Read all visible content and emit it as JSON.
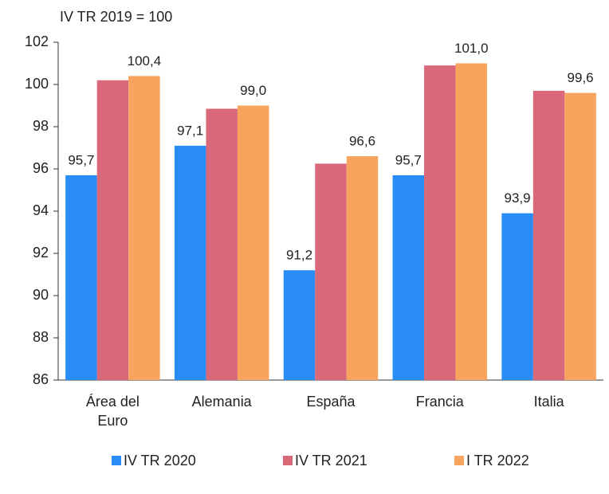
{
  "chart_data": {
    "type": "bar",
    "title": "IV TR 2019 = 100",
    "categories": [
      "Área del Euro",
      "Alemania",
      "España",
      "Francia",
      "Italia"
    ],
    "series": [
      {
        "name": "IV TR 2020",
        "color": "#2a8cf5",
        "values": [
          95.7,
          97.1,
          91.2,
          95.7,
          93.9
        ],
        "value_labels": [
          "95,7",
          "97,1",
          "91,2",
          "95,7",
          "93,9"
        ]
      },
      {
        "name": "IV TR 2021",
        "color": "#d9687a",
        "values": [
          100.2,
          98.85,
          96.25,
          100.9,
          99.7
        ]
      },
      {
        "name": "I TR 2022",
        "color": "#f9a45e",
        "values": [
          100.4,
          99.0,
          96.6,
          101.0,
          99.6
        ],
        "value_labels": [
          "100,4",
          "99,0",
          "96,6",
          "101,0",
          "99,6"
        ]
      }
    ],
    "ylim": [
      86,
      102
    ],
    "yticks": [
      86,
      88,
      90,
      92,
      94,
      96,
      98,
      100,
      102
    ],
    "legend": "bottom"
  }
}
